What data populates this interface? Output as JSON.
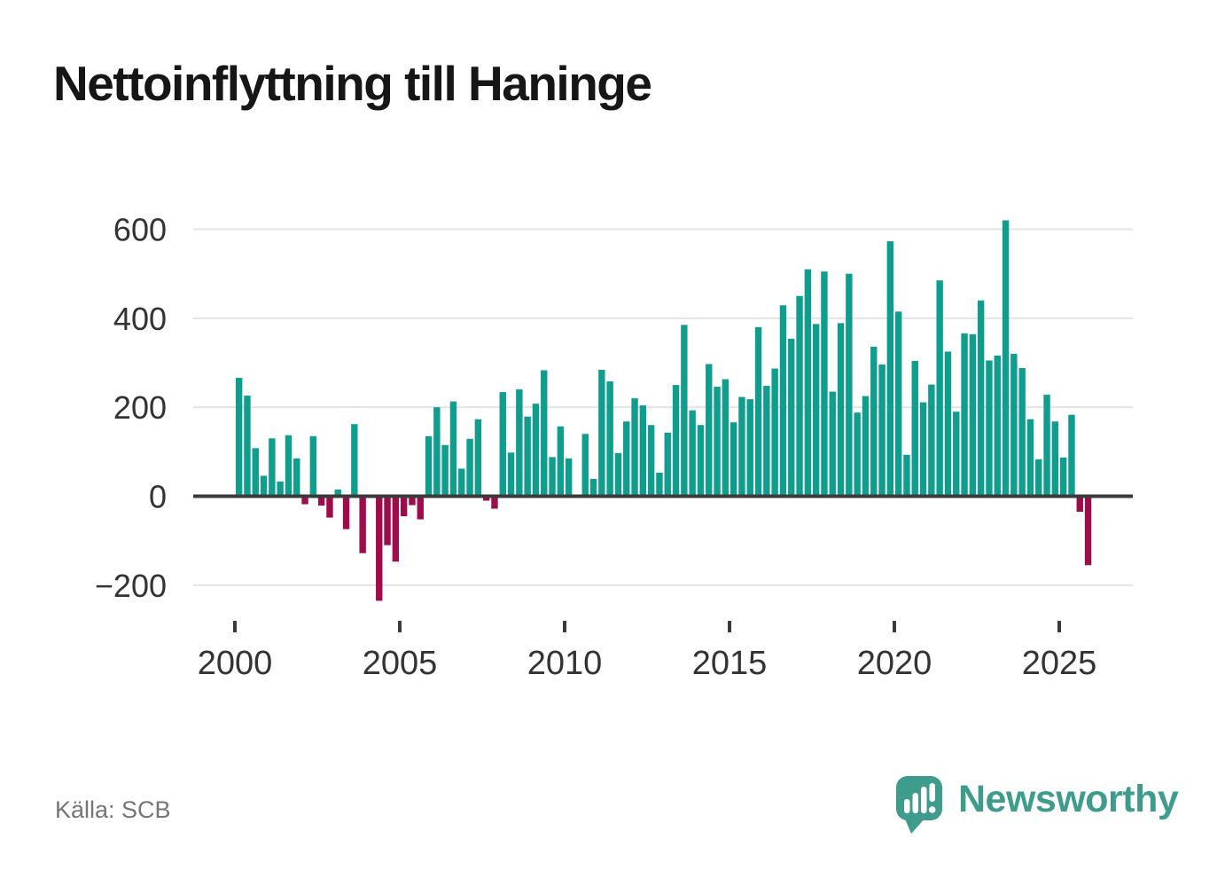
{
  "title": "Nettoinflyttning till Haninge",
  "source": {
    "label": "Källa: SCB"
  },
  "branding": {
    "name": "Newsworthy",
    "icon": "newsworthy-speech-bubble-chart-icon"
  },
  "colors": {
    "positive_bar": "#0F9E8E",
    "negative_bar": "#9E0C4B",
    "zero_axis": "#3A3A3A",
    "gridline": "#E3E3E3",
    "axis_text": "#333333",
    "title_text": "#161616",
    "source_text": "#757575",
    "brand": "#3D9C8B",
    "background": "#FFFFFF"
  },
  "chart_data": {
    "type": "bar",
    "title": "Nettoinflyttning till Haninge",
    "xlabel": "",
    "ylabel": "",
    "grid": "horizontal",
    "legend": "none",
    "ylim": [
      -250,
      650
    ],
    "y_ticks": [
      600,
      400,
      200,
      0,
      -200
    ],
    "y_tick_labels": [
      "600",
      "400",
      "200",
      "0",
      "−200"
    ],
    "x_ticks": [
      2000,
      2005,
      2010,
      2015,
      2020,
      2025
    ],
    "x_tick_labels": [
      "2000",
      "2005",
      "2010",
      "2015",
      "2020",
      "2025"
    ],
    "categories": [
      "2000Q1",
      "2000Q2",
      "2000Q3",
      "2000Q4",
      "2001Q1",
      "2001Q2",
      "2001Q3",
      "2001Q4",
      "2002Q1",
      "2002Q2",
      "2002Q3",
      "2002Q4",
      "2003Q1",
      "2003Q2",
      "2003Q3",
      "2003Q4",
      "2004Q1",
      "2004Q2",
      "2004Q3",
      "2004Q4",
      "2005Q1",
      "2005Q2",
      "2005Q3",
      "2005Q4",
      "2006Q1",
      "2006Q2",
      "2006Q3",
      "2006Q4",
      "2007Q1",
      "2007Q2",
      "2007Q3",
      "2007Q4",
      "2008Q1",
      "2008Q2",
      "2008Q3",
      "2008Q4",
      "2009Q1",
      "2009Q2",
      "2009Q3",
      "2009Q4",
      "2010Q1",
      "2010Q2",
      "2010Q3",
      "2010Q4",
      "2011Q1",
      "2011Q2",
      "2011Q3",
      "2011Q4",
      "2012Q1",
      "2012Q2",
      "2012Q3",
      "2012Q4",
      "2013Q1",
      "2013Q2",
      "2013Q3",
      "2013Q4",
      "2014Q1",
      "2014Q2",
      "2014Q3",
      "2014Q4",
      "2015Q1",
      "2015Q2",
      "2015Q3",
      "2015Q4",
      "2016Q1",
      "2016Q2",
      "2016Q3",
      "2016Q4",
      "2017Q1",
      "2017Q2",
      "2017Q3",
      "2017Q4",
      "2018Q1",
      "2018Q2",
      "2018Q3",
      "2018Q4",
      "2019Q1",
      "2019Q2",
      "2019Q3",
      "2019Q4",
      "2020Q1",
      "2020Q2",
      "2020Q3",
      "2020Q4",
      "2021Q1",
      "2021Q2",
      "2021Q3",
      "2021Q4",
      "2022Q1",
      "2022Q2",
      "2022Q3",
      "2022Q4",
      "2023Q1",
      "2023Q2",
      "2023Q3",
      "2023Q4",
      "2024Q1",
      "2024Q2",
      "2024Q3",
      "2024Q4",
      "2025Q1",
      "2025Q2",
      "2025Q3",
      "2025Q4"
    ],
    "values": [
      266,
      226,
      108,
      46,
      130,
      33,
      137,
      85,
      -18,
      135,
      -21,
      -48,
      15,
      -74,
      162,
      -128,
      0,
      -235,
      -110,
      -147,
      -45,
      -20,
      -52,
      135,
      200,
      115,
      213,
      62,
      129,
      173,
      -10,
      -28,
      234,
      98,
      240,
      179,
      208,
      283,
      88,
      157,
      85,
      0,
      140,
      39,
      284,
      258,
      97,
      168,
      220,
      204,
      160,
      53,
      143,
      250,
      385,
      193,
      160,
      297,
      246,
      263,
      166,
      223,
      218,
      380,
      248,
      287,
      429,
      354,
      450,
      510,
      387,
      505,
      235,
      389,
      500,
      188,
      225,
      336,
      296,
      573,
      415,
      93,
      304,
      211,
      251,
      485,
      325,
      190,
      366,
      364,
      440,
      305,
      316,
      620,
      320,
      288,
      173,
      83,
      228,
      168,
      87,
      183,
      -35,
      -155
    ]
  }
}
